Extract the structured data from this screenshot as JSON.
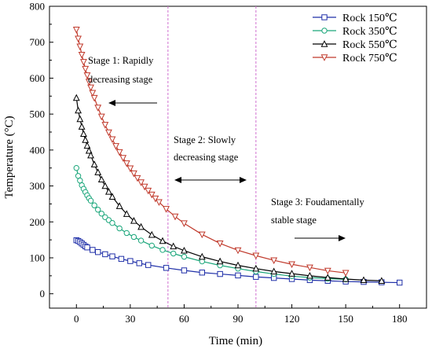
{
  "chart_data": {
    "type": "line",
    "title": "",
    "xlabel": "Time (min)",
    "ylabel": "Temperature (°C)",
    "xlim": [
      -15,
      195
    ],
    "ylim": [
      -40,
      800
    ],
    "x_ticks": [
      0,
      30,
      60,
      90,
      120,
      150,
      180
    ],
    "y_ticks": [
      0,
      100,
      200,
      300,
      400,
      500,
      600,
      700,
      800
    ],
    "grid": false,
    "legend_position": "top-right",
    "series": [
      {
        "name": "Rock 150℃",
        "color": "#1f2fa8",
        "marker": "square",
        "x": [
          0,
          1,
          2,
          3,
          4,
          5,
          6,
          9,
          12,
          16,
          20,
          25,
          30,
          35,
          40,
          50,
          60,
          70,
          80,
          90,
          100,
          110,
          120,
          130,
          140,
          150,
          160,
          170,
          180
        ],
        "y": [
          149,
          147,
          144,
          140,
          136,
          132,
          129,
          122,
          116,
          110,
          104,
          97,
          91,
          85,
          80,
          72,
          65,
          59,
          55,
          51,
          47,
          44,
          41,
          38,
          36,
          34,
          33,
          32,
          31
        ]
      },
      {
        "name": "Rock 350℃",
        "color": "#1aa67a",
        "marker": "circle",
        "x": [
          0,
          1,
          2,
          3,
          4,
          5,
          6,
          7,
          8,
          10,
          12,
          14,
          16,
          18,
          20,
          24,
          28,
          32,
          36,
          42,
          48,
          54,
          60,
          70,
          80,
          90,
          100,
          110,
          120,
          130,
          140,
          150
        ],
        "y": [
          350,
          328,
          315,
          302,
          292,
          283,
          274,
          266,
          259,
          246,
          234,
          223,
          213,
          205,
          197,
          182,
          169,
          158,
          148,
          134,
          122,
          112,
          103,
          90,
          79,
          70,
          62,
          55,
          49,
          45,
          42,
          40
        ]
      },
      {
        "name": "Rock 550℃",
        "color": "#000000",
        "marker": "triangle-up",
        "x": [
          0,
          1,
          2,
          3,
          4,
          5,
          6,
          7,
          8,
          10,
          12,
          14,
          16,
          18,
          20,
          24,
          28,
          32,
          36,
          42,
          48,
          54,
          60,
          70,
          80,
          90,
          100,
          110,
          120,
          130,
          140,
          150,
          160,
          170
        ],
        "y": [
          545,
          510,
          486,
          465,
          445,
          428,
          412,
          398,
          385,
          360,
          338,
          318,
          300,
          284,
          270,
          244,
          222,
          203,
          186,
          164,
          147,
          132,
          120,
          103,
          90,
          79,
          70,
          62,
          56,
          50,
          45,
          41,
          38,
          36
        ]
      },
      {
        "name": "Rock 750℃",
        "color": "#c0392b",
        "marker": "triangle-down",
        "x": [
          0,
          1,
          2,
          3,
          4,
          5,
          6,
          7,
          8,
          9,
          10,
          12,
          14,
          16,
          18,
          20,
          22,
          24,
          26,
          28,
          30,
          32,
          34,
          36,
          38,
          40,
          42,
          44,
          46,
          50,
          55,
          60,
          70,
          80,
          90,
          100,
          110,
          120,
          130,
          140,
          150
        ],
        "y": [
          735,
          710,
          688,
          665,
          645,
          626,
          608,
          590,
          574,
          559,
          545,
          518,
          493,
          470,
          449,
          430,
          411,
          394,
          378,
          363,
          349,
          335,
          322,
          310,
          298,
          287,
          276,
          265,
          255,
          236,
          215,
          196,
          165,
          140,
          121,
          106,
          93,
          82,
          73,
          64,
          58
        ]
      }
    ],
    "annotations": [
      {
        "text_lines": [
          "Stage 1: Rapidly",
          "decreasing stage"
        ],
        "arrow": "left"
      },
      {
        "text_lines": [
          "Stage 2: Slowly",
          "decreasing stage"
        ],
        "arrow": "both"
      },
      {
        "text_lines": [
          "Stage 3: Foudamentally",
          "stable stage"
        ],
        "arrow": "right"
      }
    ],
    "stage_boundaries_x": [
      51,
      100
    ],
    "boundary_color": "#d070d0"
  }
}
